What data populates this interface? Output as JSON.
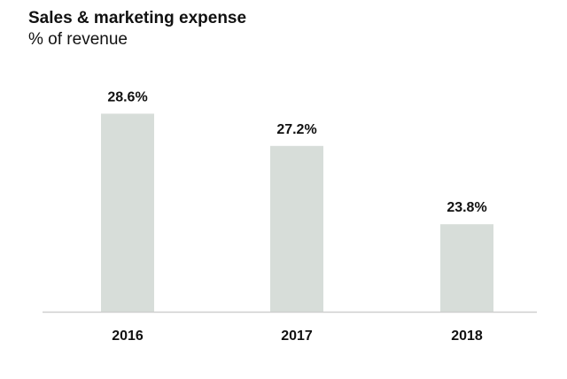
{
  "chart_data": {
    "type": "bar",
    "title": "Sales & marketing expense",
    "subtitle": "% of revenue",
    "categories": [
      "2016",
      "2017",
      "2018"
    ],
    "values": [
      28.6,
      27.2,
      23.8
    ],
    "data_labels": [
      "28.6%",
      "27.2%",
      "23.8%"
    ],
    "xlabel": "",
    "ylabel": "",
    "ylim": [
      20,
      30
    ],
    "grid": false,
    "colors": {
      "bar": "#d7ddd9",
      "axis": "#cfcfcf",
      "text": "#111111"
    }
  }
}
